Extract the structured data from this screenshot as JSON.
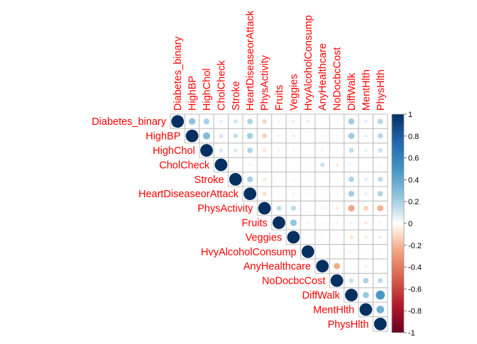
{
  "chart_data": {
    "type": "heatmap",
    "style": "corrplot-circle-upper",
    "variables": [
      "Diabetes_binary",
      "HighBP",
      "HighChol",
      "CholCheck",
      "Stroke",
      "HeartDiseaseorAttack",
      "PhysActivity",
      "Fruits",
      "Veggies",
      "HvyAlcoholConsump",
      "AnyHealthcare",
      "NoDocbcCost",
      "DiffWalk",
      "MentHlth",
      "PhysHlth"
    ],
    "label_color": "#ff0000",
    "color_scale": {
      "range": [
        -1,
        1
      ],
      "ticks": [
        "1",
        "0.8",
        "0.6",
        "0.4",
        "0.2",
        "0",
        "-0.2",
        "-0.4",
        "-0.6",
        "-0.8",
        "-1"
      ],
      "stops": [
        {
          "v": -1,
          "color": "#67001f"
        },
        {
          "v": -0.75,
          "color": "#b2182b"
        },
        {
          "v": -0.5,
          "color": "#d6604d"
        },
        {
          "v": -0.25,
          "color": "#f4a582"
        },
        {
          "v": -0.1,
          "color": "#fddbc7"
        },
        {
          "v": 0,
          "color": "#ffffff"
        },
        {
          "v": 0.1,
          "color": "#d1e5f0"
        },
        {
          "v": 0.25,
          "color": "#92c5de"
        },
        {
          "v": 0.5,
          "color": "#4393c3"
        },
        {
          "v": 0.75,
          "color": "#2166ac"
        },
        {
          "v": 1,
          "color": "#053061"
        }
      ]
    },
    "matrix": [
      [
        1,
        0.26,
        0.2,
        0.06,
        0.1,
        0.18,
        -0.12,
        -0.04,
        -0.06,
        -0.06,
        0.02,
        0.03,
        0.22,
        0.07,
        0.17
      ],
      [
        null,
        1,
        0.3,
        0.1,
        0.13,
        0.21,
        -0.13,
        -0.04,
        -0.06,
        -0.0,
        0.04,
        0.02,
        0.22,
        0.06,
        0.16
      ],
      [
        null,
        null,
        1,
        0.09,
        0.09,
        0.18,
        -0.08,
        -0.04,
        -0.04,
        -0.01,
        0.04,
        0.03,
        0.14,
        0.06,
        0.12
      ],
      [
        null,
        null,
        null,
        1,
        0.02,
        0.04,
        0.0,
        0.02,
        0.0,
        -0.02,
        0.12,
        -0.06,
        0.04,
        -0.01,
        0.03
      ],
      [
        null,
        null,
        null,
        null,
        1,
        0.2,
        -0.07,
        -0.01,
        -0.04,
        -0.02,
        0.01,
        0.03,
        0.18,
        0.07,
        0.15
      ],
      [
        null,
        null,
        null,
        null,
        null,
        1,
        -0.09,
        -0.02,
        -0.04,
        -0.03,
        0.02,
        0.03,
        0.21,
        0.06,
        0.18
      ],
      [
        null,
        null,
        null,
        null,
        null,
        null,
        1,
        0.14,
        0.15,
        0.01,
        0.04,
        -0.06,
        -0.25,
        -0.13,
        -0.22
      ],
      [
        null,
        null,
        null,
        null,
        null,
        null,
        null,
        1,
        0.25,
        -0.04,
        0.03,
        -0.04,
        -0.05,
        -0.07,
        -0.04
      ],
      [
        null,
        null,
        null,
        null,
        null,
        null,
        null,
        null,
        1,
        0.02,
        0.03,
        -0.03,
        -0.08,
        -0.06,
        -0.06
      ],
      [
        null,
        null,
        null,
        null,
        null,
        null,
        null,
        null,
        null,
        1,
        -0.01,
        0.0,
        -0.04,
        0.02,
        -0.03
      ],
      [
        null,
        null,
        null,
        null,
        null,
        null,
        null,
        null,
        null,
        null,
        1,
        -0.23,
        0.01,
        -0.05,
        -0.01
      ],
      [
        null,
        null,
        null,
        null,
        null,
        null,
        null,
        null,
        null,
        null,
        null,
        1,
        0.12,
        0.19,
        0.15
      ],
      [
        null,
        null,
        null,
        null,
        null,
        null,
        null,
        null,
        null,
        null,
        null,
        null,
        1,
        0.23,
        0.48
      ],
      [
        null,
        null,
        null,
        null,
        null,
        null,
        null,
        null,
        null,
        null,
        null,
        null,
        null,
        1,
        0.35
      ],
      [
        null,
        null,
        null,
        null,
        null,
        null,
        null,
        null,
        null,
        null,
        null,
        null,
        null,
        null,
        1
      ]
    ]
  }
}
